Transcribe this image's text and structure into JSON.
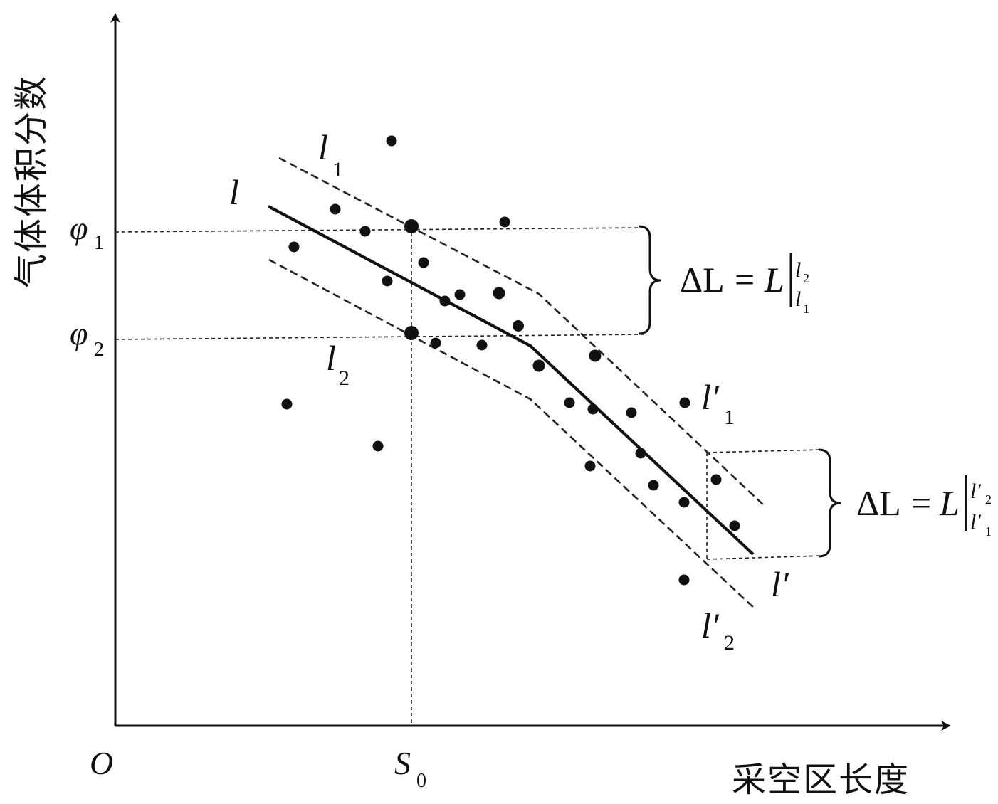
{
  "axes": {
    "y_label": "气体体积分数",
    "x_label": "采空区长度",
    "origin": "O"
  },
  "markers": {
    "phi1": {
      "base": "φ",
      "sub": "1"
    },
    "phi2": {
      "base": "φ",
      "sub": "2"
    },
    "s0": {
      "base": "S",
      "sub": "0"
    }
  },
  "lines": {
    "l": "l",
    "l1": {
      "base": "l",
      "sub": "1"
    },
    "l2": {
      "base": "l",
      "sub": "2"
    },
    "lp": "l′",
    "lp1": {
      "base": "l′",
      "sub": "1"
    },
    "lp2": {
      "base": "l′",
      "sub": "2"
    }
  },
  "annotations": {
    "delta_upper": {
      "lhs": "ΔL",
      "eq": "=",
      "rhs": "L",
      "top_base": "l",
      "top_sub": "2",
      "bottom_base": "l",
      "bottom_sub": "1"
    },
    "delta_lower": {
      "lhs": "ΔL",
      "eq": "=",
      "rhs": "L",
      "top_base": "l′",
      "top_sub": "2",
      "bottom_base": "l′",
      "bottom_sub": "1"
    }
  }
}
